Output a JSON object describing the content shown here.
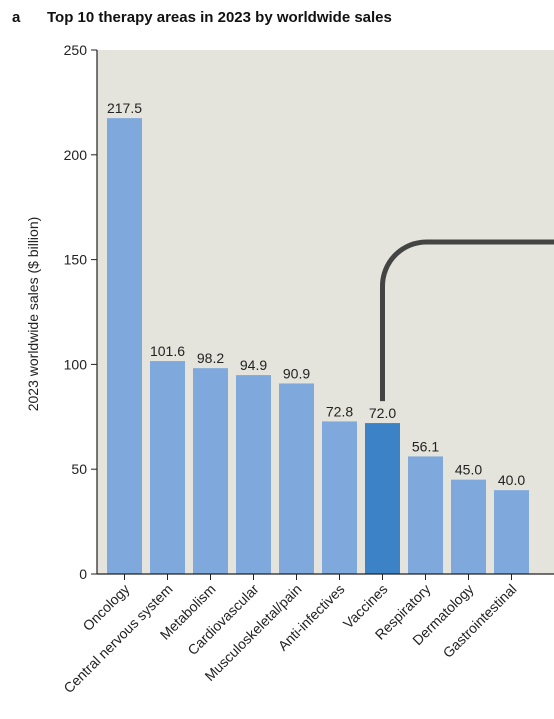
{
  "panel_label": "a",
  "chart_data": {
    "type": "bar",
    "title": "Top 10 therapy areas in 2023 by worldwide sales",
    "xlabel": "",
    "ylabel": "2023 worldwide sales ($ billion)",
    "ylim": [
      0,
      250
    ],
    "yticks": [
      0,
      50,
      100,
      150,
      200,
      250
    ],
    "categories": [
      "Oncology",
      "Central nervous system",
      "Metabolism",
      "Cardiovascular",
      "Musculoskeletal/pain",
      "Anti-infectives",
      "Vaccines",
      "Respiratory",
      "Dermatology",
      "Gastrointestinal"
    ],
    "values": [
      217.5,
      101.6,
      98.2,
      94.9,
      90.9,
      72.8,
      72.0,
      56.1,
      45.0,
      40.0
    ],
    "value_labels": [
      "217.5",
      "101.6",
      "98.2",
      "94.9",
      "90.9",
      "72.8",
      "72.0",
      "56.1",
      "45.0",
      "40.0"
    ],
    "highlight_category": "Vaccines",
    "grid": false,
    "colors": {
      "plot_background": "#e4e4dc",
      "bar": "#7fa9dc",
      "bar_highlight": "#3b82c6",
      "callout_line": "#444444",
      "axis": "#222222"
    }
  }
}
